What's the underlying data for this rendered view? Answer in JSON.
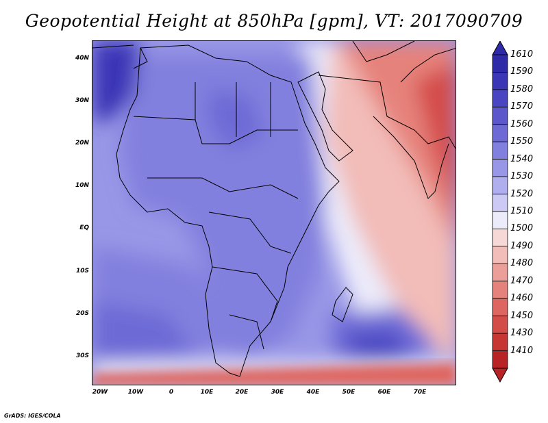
{
  "title": "Geopotential Height at 850hPa [gpm], VT: 2017090709",
  "footer": "GrADS: IGES/COLA",
  "map": {
    "latitude_labels": [
      "40N",
      "30N",
      "20N",
      "10N",
      "EQ",
      "10S",
      "20S",
      "30S"
    ],
    "longitude_labels": [
      "20W",
      "10W",
      "0",
      "10E",
      "20E",
      "30E",
      "40E",
      "50E",
      "60E",
      "70E"
    ],
    "field_bands": [
      {
        "name": "southern-ocean-low",
        "value": 1460
      },
      {
        "name": "southern-ridge",
        "value": 1510
      },
      {
        "name": "africa-interior",
        "value": 1550
      },
      {
        "name": "atlantic",
        "value": 1540
      },
      {
        "name": "north-atlantic-high",
        "value": 1590
      },
      {
        "name": "indian-ocean-high",
        "value": 1570
      },
      {
        "name": "arabian-sea",
        "value": 1500
      },
      {
        "name": "south-asia-low",
        "value": 1460
      }
    ]
  },
  "colorbar": {
    "levels": [
      "1610",
      "1590",
      "1580",
      "1570",
      "1560",
      "1550",
      "1540",
      "1530",
      "1520",
      "1510",
      "1500",
      "1490",
      "1480",
      "1470",
      "1460",
      "1450",
      "1430",
      "1410"
    ],
    "colors": [
      "#2e2aa8",
      "#3a36b6",
      "#4a46c2",
      "#5c58cc",
      "#6d6ad6",
      "#8280de",
      "#9896e6",
      "#b0aeee",
      "#cccaf4",
      "#ecebfa",
      "#f6d8d6",
      "#f2bcb8",
      "#ec9e98",
      "#e6827c",
      "#de6660",
      "#d44c48",
      "#c83634",
      "#b82426"
    ]
  },
  "colors": {
    "coast": "#000000",
    "frame": "#000000"
  }
}
